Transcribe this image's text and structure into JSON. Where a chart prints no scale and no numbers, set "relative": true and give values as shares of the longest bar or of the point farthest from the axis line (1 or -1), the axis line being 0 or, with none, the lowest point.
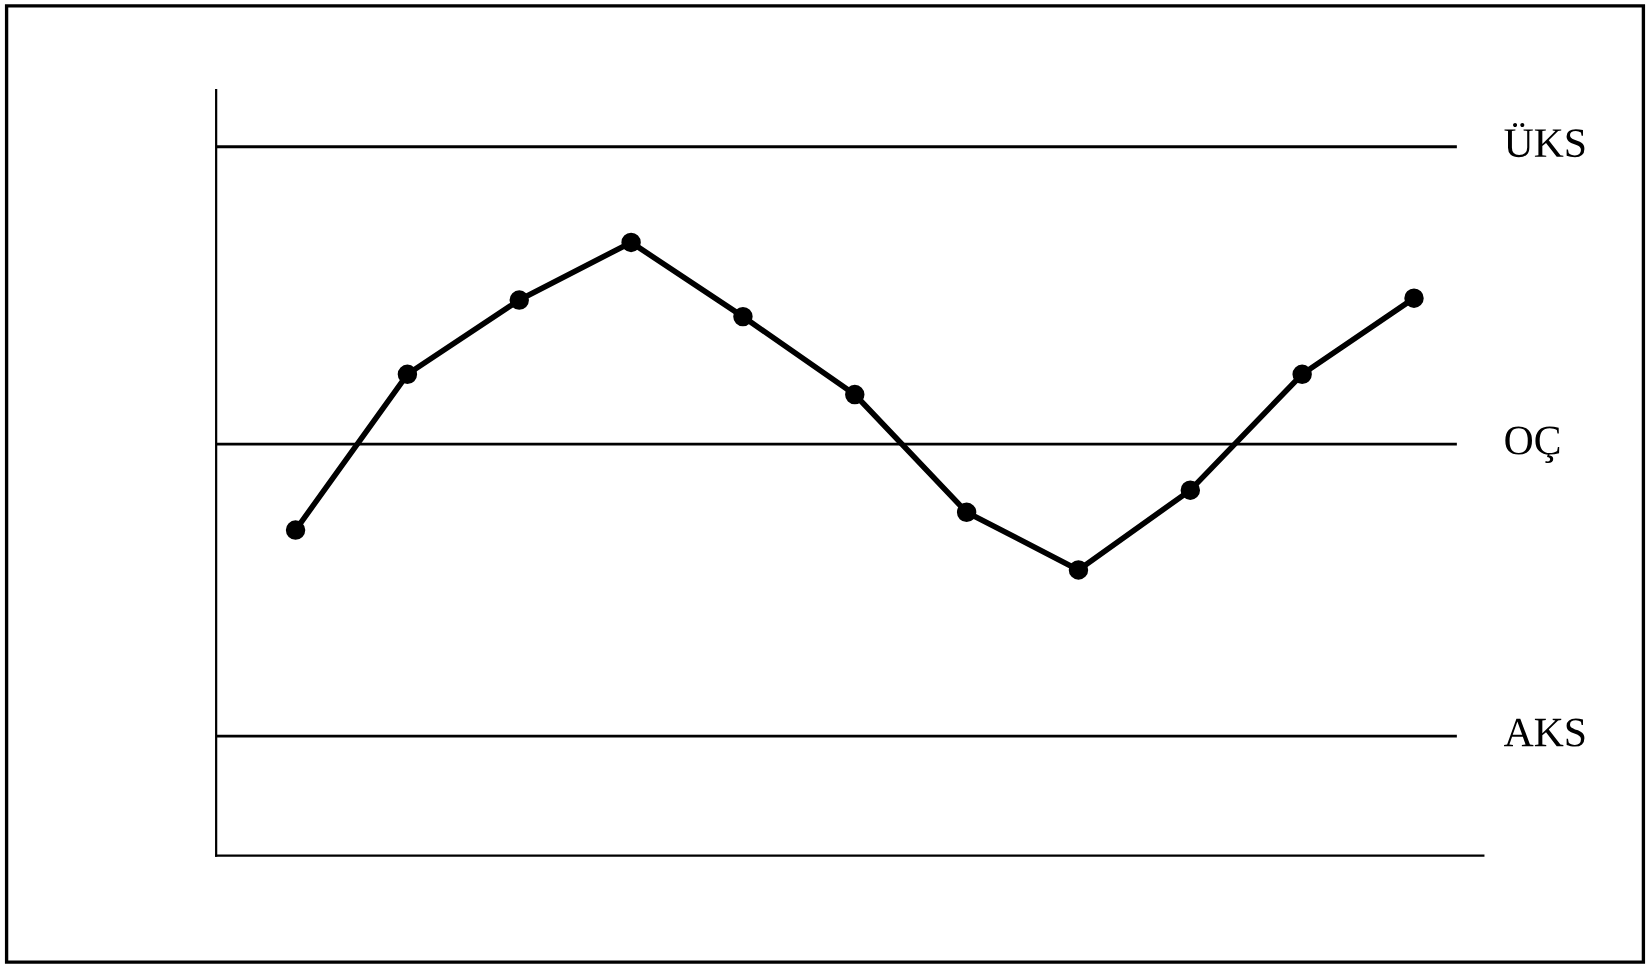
{
  "chart_data": {
    "type": "line",
    "relative": true,
    "categories": [
      null,
      null,
      null,
      null,
      null,
      null,
      null,
      null,
      null,
      null,
      null
    ],
    "values": [
      0.531,
      0.785,
      0.906,
      1,
      0.879,
      0.752,
      0.56,
      0.466,
      0.596,
      0.785,
      0.909
    ],
    "color": "#000000",
    "marker": "circle",
    "line_style": "solid",
    "grid": false,
    "legend": false,
    "ref_lines": [
      {
        "axis": "y",
        "value": 1.156,
        "label": "ÜKS",
        "color": "#000000"
      },
      {
        "axis": "y",
        "value": 0.671,
        "label": "OÇ",
        "color": "#000000"
      },
      {
        "axis": "y",
        "value": 0.195,
        "label": "AKS",
        "color": "#000000"
      }
    ]
  }
}
